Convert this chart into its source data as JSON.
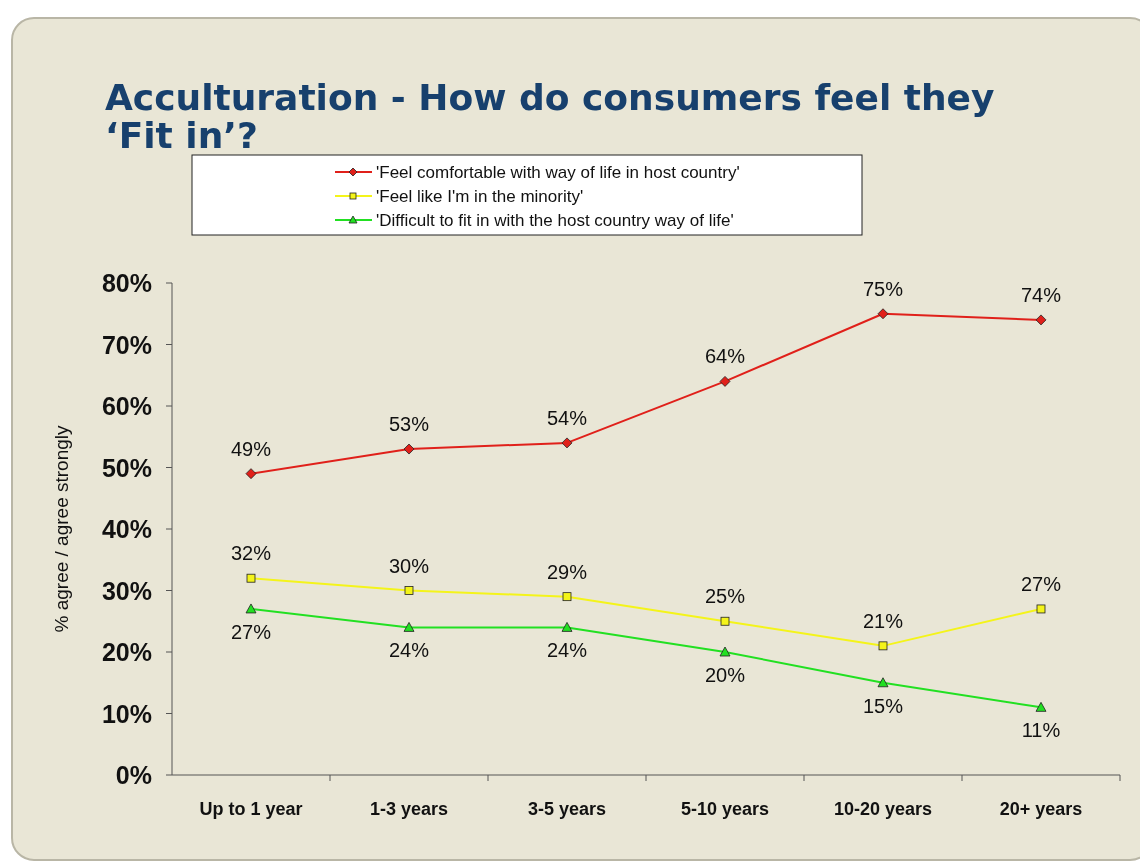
{
  "chart_data": {
    "type": "line",
    "title": "Acculturation - How do consumers feel they ‘Fit in’?",
    "ylabel": "% agree / agree strongly",
    "categories": [
      "Up to 1 year",
      "1-3 years",
      "3-5 years",
      "5-10 years",
      "10-20 years",
      "20+ years"
    ],
    "series": [
      {
        "name": "'Feel comfortable with way of life in host country'",
        "color": "#e0201a",
        "marker": "diamond",
        "values": [
          49,
          53,
          54,
          64,
          75,
          74
        ],
        "value_labels": [
          "49%",
          "53%",
          "54%",
          "64%",
          "75%",
          "74%"
        ]
      },
      {
        "name": "'Feel like I'm in the minority'",
        "color": "#f4f41a",
        "marker": "square",
        "values": [
          32,
          30,
          29,
          25,
          21,
          27
        ],
        "value_labels": [
          "32%",
          "30%",
          "29%",
          "25%",
          "21%",
          "27%"
        ]
      },
      {
        "name": "'Difficult to fit in with the host country way of life'",
        "color": "#22e022",
        "marker": "triangle",
        "values": [
          27,
          24,
          24,
          20,
          15,
          11
        ],
        "value_labels": [
          "27%",
          "24%",
          "24%",
          "20%",
          "15%",
          "11%"
        ]
      }
    ],
    "ylim": [
      0,
      80
    ],
    "yticks": [
      {
        "value": 0,
        "label": "0%"
      },
      {
        "value": 10,
        "label": "10%"
      },
      {
        "value": 20,
        "label": "20%"
      },
      {
        "value": 30,
        "label": "30%"
      },
      {
        "value": 40,
        "label": "40%"
      },
      {
        "value": 50,
        "label": "50%"
      },
      {
        "value": 60,
        "label": "60%"
      },
      {
        "value": 70,
        "label": "70%"
      },
      {
        "value": 80,
        "label": "80%"
      }
    ],
    "grid": false,
    "legend": "top",
    "line_style": "solid"
  }
}
